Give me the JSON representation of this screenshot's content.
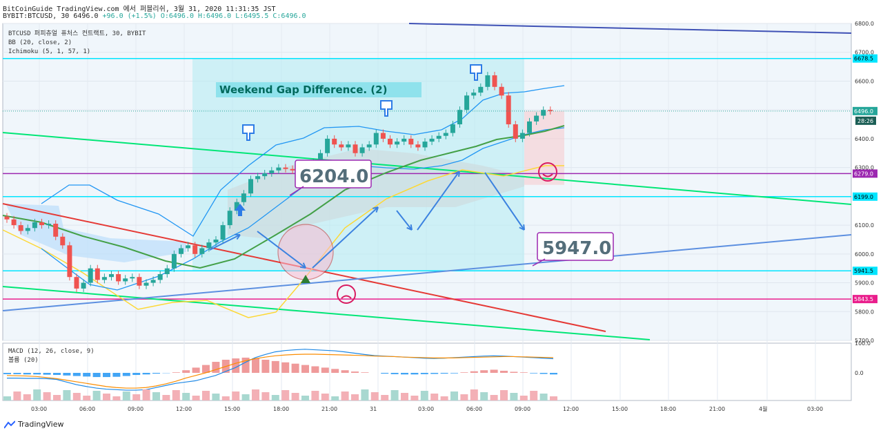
{
  "header": {
    "line1": "BitCoinGuide TradingView.com 에서 퍼블리쉬, 3월 31, 2020 11:31:35 JST",
    "line2_symbol": "BYBIT:BTCUSD, 30",
    "line2_close": "6496.0",
    "line2_change": "+96.0 (+1.5%)",
    "line2_ohlc": "O:6496.0 H:6496.0 L:6495.5 C:6496.0"
  },
  "legend": {
    "symbol": "BTCUSD 퍼피츄얼 퓨처스 컨트랙트, 30, BYBIT",
    "bb": "BB (20, close, 2)",
    "ichimoku": "Ichimoku (5, 1, 57, 1)",
    "macd": "MACD (12, 26, close, 9)",
    "volume": "볼륨 (20)"
  },
  "annotations": {
    "title_box": "Weekend Gap Difference. (2)",
    "callout_upper": "6204.0",
    "callout_lower": "5947.0"
  },
  "price_badges": {
    "current": "6496.0",
    "countdown": "28:26"
  },
  "footer": {
    "brand": "TradingView"
  },
  "colors": {
    "up": "#26a69a",
    "down": "#ef5350",
    "bb": "#2196f3",
    "ma": "#43a047",
    "spanB": "#fdd835",
    "cyan": "#00e5ff",
    "purple": "#9c27b0",
    "magenta": "#e91e8c",
    "green_line": "#00e676",
    "red_line": "#e53935",
    "blue_line": "#5c8fe0"
  },
  "chart_data": {
    "type": "candlestick",
    "symbol": "BYBIT:BTCUSD",
    "interval": "30",
    "ylim": [
      5700,
      6800
    ],
    "y_ticks": [
      "6800.0",
      "6700.0",
      "6600.0",
      "6500.0",
      "6400.0",
      "6300.0",
      "6200.0",
      "6100.0",
      "6000.0",
      "5900.0",
      "5800.0",
      "5700.0"
    ],
    "x_ticks": [
      "03:00",
      "06:00",
      "09:00",
      "12:00",
      "15:00",
      "18:00",
      "21:00",
      "31",
      "03:00",
      "06:00",
      "09:00",
      "12:00",
      "15:00",
      "18:00",
      "21:00",
      "4월",
      "03:00"
    ],
    "horizontal_levels": [
      {
        "value": 6678.5,
        "label": "6678.5",
        "color": "cyan"
      },
      {
        "value": 6279.0,
        "label": "6279.0",
        "color": "purple"
      },
      {
        "value": 6199.0,
        "label": "6199.0",
        "color": "cyan"
      },
      {
        "value": 5941.5,
        "label": "5941.5",
        "color": "cyan"
      },
      {
        "value": 5843.5,
        "label": "5843.5",
        "color": "magenta"
      }
    ],
    "candles_close": [
      6120,
      6100,
      6080,
      6090,
      6110,
      6100,
      6105,
      6060,
      6030,
      5920,
      5880,
      5900,
      5950,
      5910,
      5920,
      5930,
      5905,
      5915,
      5920,
      5890,
      5900,
      5910,
      5930,
      5950,
      6000,
      6020,
      6030,
      6000,
      6020,
      6040,
      6050,
      6100,
      6150,
      6180,
      6210,
      6260,
      6270,
      6280,
      6290,
      6300,
      6295,
      6290,
      6300,
      6310,
      6320,
      6350,
      6400,
      6380,
      6370,
      6380,
      6350,
      6370,
      6380,
      6420,
      6400,
      6380,
      6390,
      6400,
      6380,
      6370,
      6390,
      6400,
      6410,
      6420,
      6450,
      6500,
      6550,
      6560,
      6580,
      6620,
      6580,
      6550,
      6450,
      6400,
      6420,
      6460,
      6480,
      6500,
      6496
    ],
    "macd": {
      "macd_line": [
        -20,
        -20,
        -21,
        -21,
        -22,
        -25,
        -35,
        -45,
        -52,
        -58,
        -62,
        -64,
        -66,
        -66,
        -64,
        -56,
        -48,
        -40,
        -35,
        -30,
        -20,
        -10,
        5,
        20,
        40,
        58,
        70,
        80,
        85,
        88,
        90,
        88,
        86,
        84,
        80,
        75,
        70,
        66,
        64,
        62,
        60,
        58,
        56,
        55,
        56,
        58,
        60,
        62,
        64,
        65,
        64,
        62,
        60,
        58,
        56,
        54
      ],
      "signal_line": [
        -10,
        -11,
        -12,
        -14,
        -18,
        -22,
        -28,
        -34,
        -40,
        -46,
        -52,
        -56,
        -58,
        -58,
        -56,
        -50,
        -42,
        -32,
        -20,
        -10,
        0,
        12,
        24,
        36,
        46,
        54,
        60,
        65,
        68,
        70,
        71,
        71,
        70,
        69,
        68,
        67,
        66,
        64,
        63,
        62,
        60,
        59,
        58,
        57,
        57,
        57,
        58,
        59,
        60,
        61,
        62,
        62,
        61,
        60,
        59,
        58
      ],
      "histogram": [
        -5,
        -5,
        -6,
        -6,
        -7,
        -8,
        -10,
        -12,
        -14,
        -16,
        -16,
        -15,
        -12,
        -8,
        -6,
        -3,
        -1,
        2,
        10,
        20,
        30,
        42,
        50,
        55,
        58,
        55,
        50,
        45,
        40,
        35,
        30,
        25,
        20,
        15,
        10,
        5,
        2,
        0,
        -3,
        -5,
        -6,
        -6,
        -5,
        -4,
        -3,
        -2,
        2,
        6,
        10,
        12,
        8,
        4,
        2,
        -2,
        -4,
        -6
      ],
      "y_ticks": [
        "100.0",
        "0.0"
      ]
    }
  }
}
